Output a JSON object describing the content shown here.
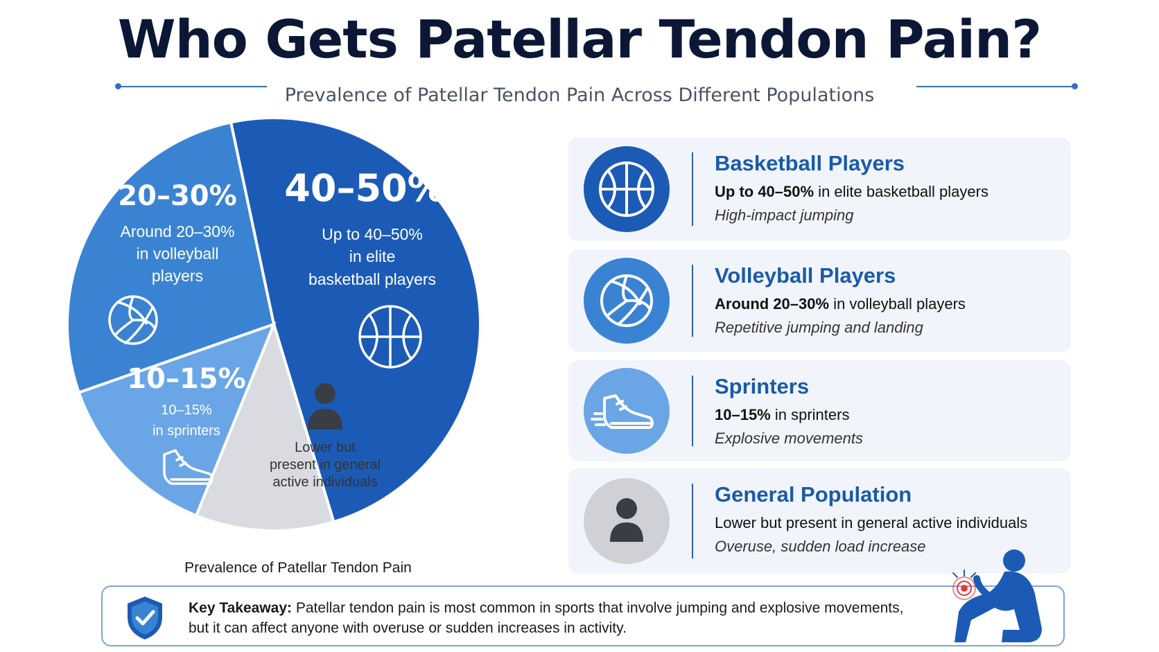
{
  "header": {
    "title": "Who Gets Patellar Tendon Pain?",
    "subtitle": "Prevalence of Patellar Tendon Pain Across Different Populations"
  },
  "chart_data": {
    "type": "pie",
    "title": "Prevalence of Patellar Tendon Pain",
    "slices": [
      {
        "key": "basketball",
        "value": 45,
        "pct": "40–50%",
        "lines": [
          "Up to 40–50%",
          "in elite",
          "basketball players"
        ],
        "color": "#1c5bb5",
        "icon": "basketball-icon"
      },
      {
        "key": "general",
        "value": 10,
        "pct": "",
        "lines": [
          "Lower but",
          "present in general",
          "active individuals"
        ],
        "color": "#d9dbe0",
        "icon": "person-icon"
      },
      {
        "key": "sprinters",
        "value": 12.5,
        "pct": "10–15%",
        "lines": [
          "10–15%",
          "in sprinters"
        ],
        "color": "#6aa6e6",
        "icon": "sneaker-icon"
      },
      {
        "key": "volleyball",
        "value": 25,
        "pct": "20–30%",
        "lines": [
          "Around 20–30%",
          "in volleyball",
          "players"
        ],
        "color": "#3a83d3",
        "icon": "volleyball-icon"
      }
    ]
  },
  "cards": [
    {
      "name": "Basketball Players",
      "desc_bold": "Up to 40–50%",
      "desc_rest": " in elite basketball players",
      "note": "High-impact jumping",
      "icon": "basketball-icon",
      "circle_color": "#1c5bb5"
    },
    {
      "name": "Volleyball Players",
      "desc_bold": "Around 20–30%",
      "desc_rest": " in volleyball players",
      "note": "Repetitive jumping and landing",
      "icon": "volleyball-icon",
      "circle_color": "#3a83d3"
    },
    {
      "name": "Sprinters",
      "desc_bold": "10–15%",
      "desc_rest": " in sprinters",
      "note": "Explosive movements",
      "icon": "sneaker-icon",
      "circle_color": "#6aa6e6"
    },
    {
      "name": "General Population",
      "desc_bold": "",
      "desc_rest": "Lower but present in general active individuals",
      "note": "Overuse, sudden load increase",
      "icon": "person-icon",
      "circle_color": "#cfd1d6"
    }
  ],
  "takeaway": {
    "label": "Key Takeaway:",
    "text": " Patellar tendon pain is most common in sports that involve jumping and explosive movements, but it can affect anyone with overuse or sudden increases in activity."
  }
}
